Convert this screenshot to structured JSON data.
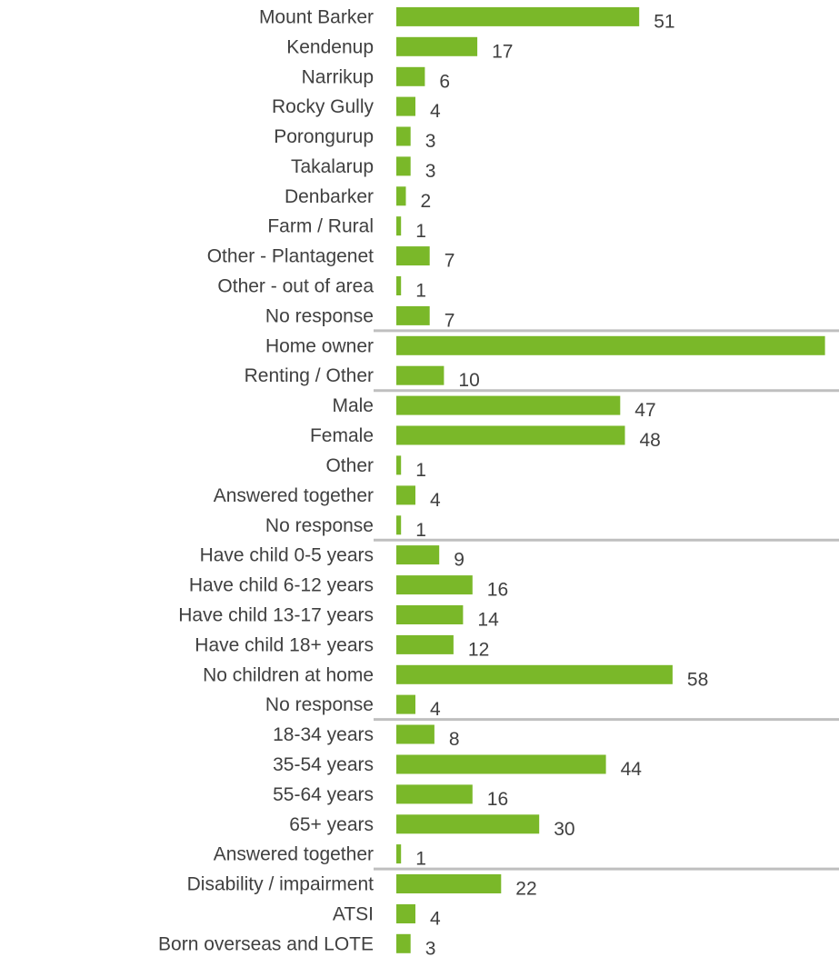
{
  "chart_data": {
    "type": "bar",
    "orientation": "horizontal",
    "bar_color": "#7ab829",
    "text_color": "#404040",
    "separator_color": "#bfbfbf",
    "xlim": [
      0,
      90
    ],
    "grid": false,
    "categories": [
      "Mount Barker",
      "Kendenup",
      "Narrikup",
      "Rocky Gully",
      "Porongurup",
      "Takalarup",
      "Denbarker",
      "Farm / Rural",
      "Other - Plantagenet",
      "Other - out of area",
      "No response",
      "Home owner",
      "Renting / Other",
      "Male",
      "Female",
      "Other",
      "Answered together",
      "No response",
      "Have child 0-5 years",
      "Have child 6-12 years",
      "Have child 13-17 years",
      "Have child 18+ years",
      "No children at home",
      "No response",
      "18-34 years",
      "35-54 years",
      "55-64 years",
      "65+ years",
      "Answered together",
      "Disability / impairment",
      "ATSI",
      "Born overseas and LOTE"
    ],
    "values": [
      51,
      17,
      6,
      4,
      3,
      3,
      2,
      1,
      7,
      1,
      7,
      90,
      10,
      47,
      48,
      1,
      4,
      1,
      9,
      16,
      14,
      12,
      58,
      4,
      8,
      44,
      16,
      30,
      1,
      22,
      4,
      3
    ],
    "group_breaks_after": [
      10,
      12,
      17,
      23,
      28
    ]
  }
}
